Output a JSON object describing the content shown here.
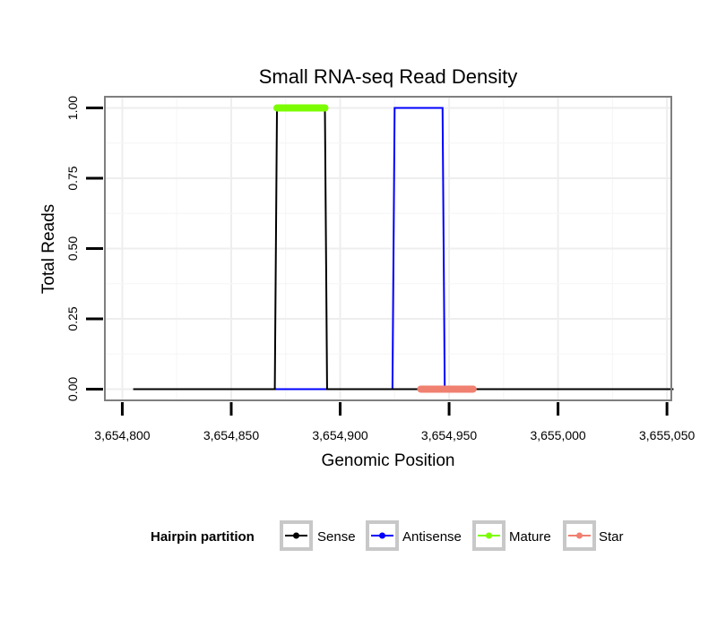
{
  "chart_data": {
    "type": "line",
    "title": "Small RNA-seq Read Density",
    "xlabel": "Genomic Position",
    "ylabel": "Total Reads",
    "xlim": [
      3654792,
      3655052
    ],
    "ylim": [
      -0.04,
      1.04
    ],
    "x_ticks": [
      3654800,
      3654850,
      3654900,
      3654950,
      3655000,
      3655050
    ],
    "x_tick_labels": [
      "3,654,800",
      "3,654,850",
      "3,654,900",
      "3,654,950",
      "3,655,000",
      "3,655,050"
    ],
    "y_ticks": [
      0,
      0.25,
      0.5,
      0.75,
      1.0
    ],
    "y_tick_labels": [
      "0.00",
      "0.25",
      "0.50",
      "0.75",
      "1.00"
    ],
    "grid": true,
    "series": [
      {
        "name": "Sense",
        "color": "#000000",
        "x": [
          3654805,
          3654870,
          3654871,
          3654893,
          3654894,
          3655053
        ],
        "y": [
          0,
          0,
          1,
          1,
          0,
          0
        ]
      },
      {
        "name": "Antisense",
        "color": "#0000ff",
        "x": [
          3654870,
          3654894,
          3654924,
          3654925,
          3654947,
          3654948,
          3654952
        ],
        "y": [
          0,
          0,
          0,
          1,
          1,
          0,
          0
        ]
      }
    ],
    "segments": [
      {
        "name": "Mature",
        "color": "#7cfc00",
        "x_start": 3654871,
        "x_end": 3654893,
        "y": 1
      },
      {
        "name": "Star",
        "color": "#f08070",
        "x_start": 3654937,
        "x_end": 3654961,
        "y": 0
      }
    ],
    "legend": {
      "title": "Hairpin partition",
      "position": "bottom",
      "entries": [
        {
          "label": "Sense",
          "color": "#000000"
        },
        {
          "label": "Antisense",
          "color": "#0000ff"
        },
        {
          "label": "Mature",
          "color": "#7cfc00"
        },
        {
          "label": "Star",
          "color": "#f08070"
        }
      ]
    }
  }
}
